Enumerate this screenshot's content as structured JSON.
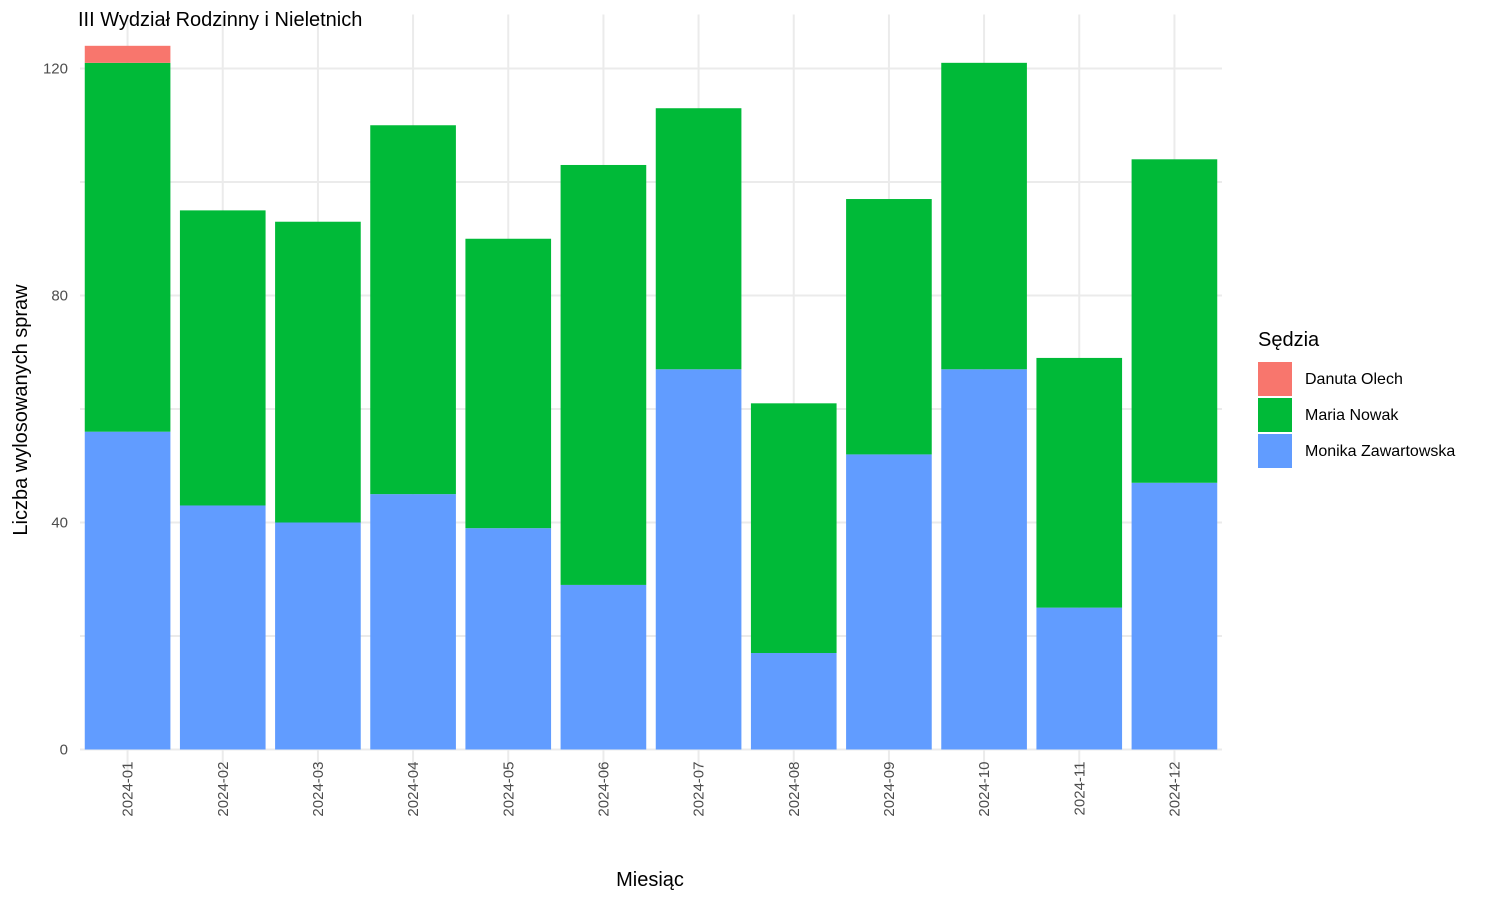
{
  "chart_data": {
    "type": "bar",
    "stacked": true,
    "title": "III Wydział Rodzinny i Nieletnich",
    "xlabel": "Miesiąc",
    "ylabel": "Liczba wylosowanych spraw",
    "ylim": [
      0,
      126
    ],
    "yticks": [
      0,
      40,
      80,
      120
    ],
    "grid": true,
    "legend_title": "Sędzia",
    "legend_position": "right",
    "categories": [
      "2024-01",
      "2024-02",
      "2024-03",
      "2024-04",
      "2024-05",
      "2024-06",
      "2024-07",
      "2024-08",
      "2024-09",
      "2024-10",
      "2024-11",
      "2024-12"
    ],
    "series": [
      {
        "name": "Monika Zawartowska",
        "color": "#619CFF",
        "values": [
          56,
          43,
          40,
          45,
          39,
          29,
          67,
          17,
          52,
          67,
          25,
          47
        ]
      },
      {
        "name": "Maria Nowak",
        "color": "#00BA38",
        "values": [
          65,
          52,
          53,
          65,
          51,
          74,
          46,
          44,
          45,
          54,
          44,
          57
        ]
      },
      {
        "name": "Danuta Olech",
        "color": "#F8766D",
        "values": [
          3,
          0,
          0,
          0,
          0,
          0,
          0,
          0,
          0,
          0,
          0,
          0
        ]
      }
    ],
    "legend_order": [
      "Danuta Olech",
      "Maria Nowak",
      "Monika Zawartowska"
    ]
  }
}
